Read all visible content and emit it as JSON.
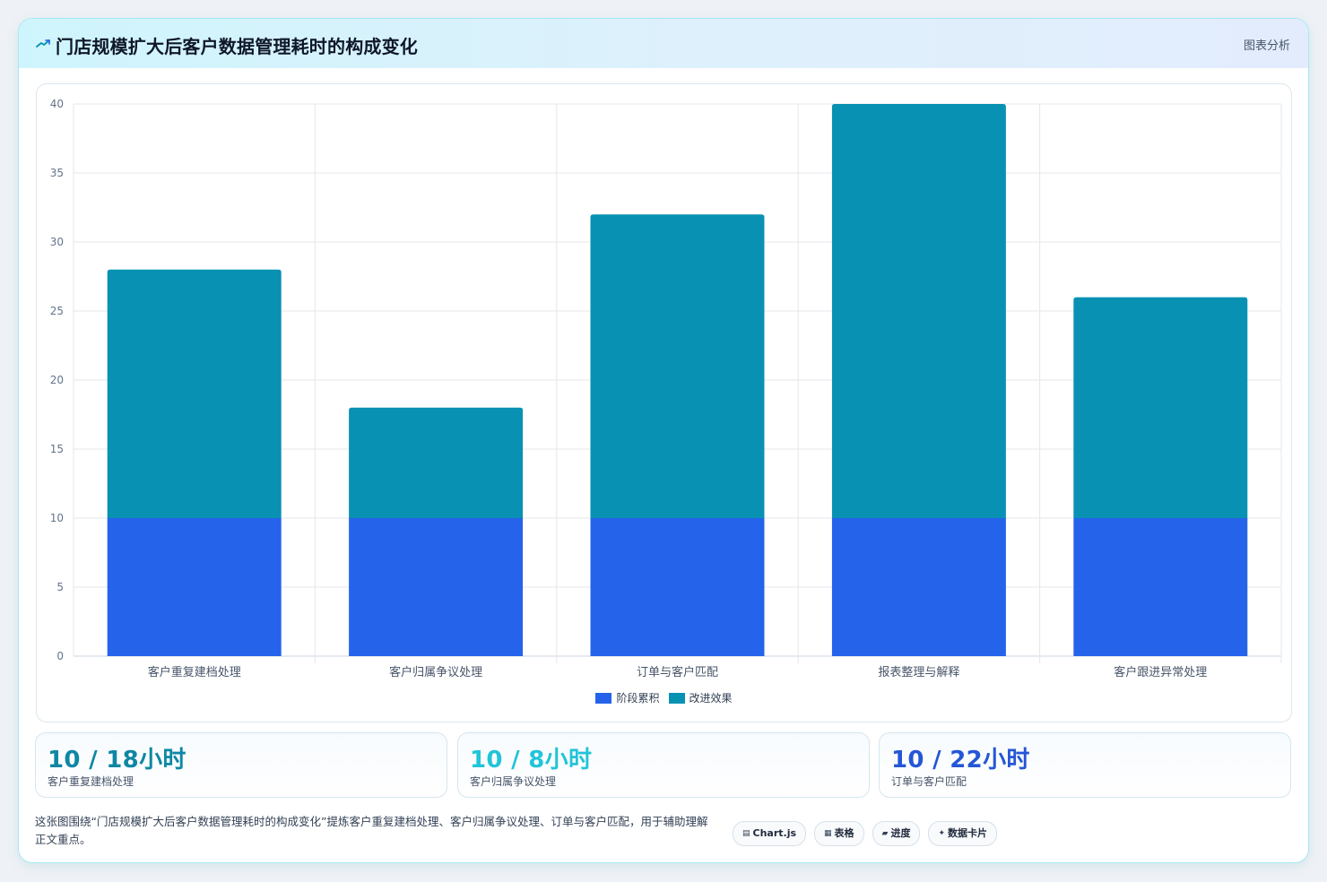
{
  "header": {
    "title": "门店规模扩大后客户数据管理耗时的构成变化",
    "tag": "图表分析"
  },
  "colors": {
    "series_a": "#2563eb",
    "series_b": "#0891b2",
    "stat_1": "#0e87a4",
    "stat_2": "#22c4d8",
    "stat_3": "#2556d6"
  },
  "chart_data": {
    "type": "bar",
    "stacked": true,
    "categories": [
      "客户重复建档处理",
      "客户归属争议处理",
      "订单与客户匹配",
      "报表整理与解释",
      "客户跟进异常处理"
    ],
    "series": [
      {
        "name": "阶段累积",
        "values": [
          10,
          10,
          10,
          10,
          10
        ],
        "color": "#2563eb"
      },
      {
        "name": "改进效果",
        "values": [
          18,
          8,
          22,
          30,
          16
        ],
        "color": "#0891b2"
      }
    ],
    "ylim": [
      0,
      40
    ],
    "yticks": [
      0,
      5,
      10,
      15,
      20,
      25,
      30,
      35,
      40
    ],
    "grid": true,
    "legend_position": "bottom-center"
  },
  "stats": [
    {
      "value": "10 / 18小时",
      "label": "客户重复建档处理"
    },
    {
      "value": "10 / 8小时",
      "label": "客户归属争议处理"
    },
    {
      "value": "10 / 22小时",
      "label": "订单与客户匹配"
    }
  ],
  "note": "这张图围绕“门店规模扩大后客户数据管理耗时的构成变化”提炼客户重复建档处理、客户归属争议处理、订单与客户匹配，用于辅助理解正文重点。",
  "chips": [
    {
      "icon": "▤",
      "label": "Chart.js",
      "icon_name": "chart-icon"
    },
    {
      "icon": "▦",
      "label": "表格",
      "icon_name": "table-icon"
    },
    {
      "icon": "▰",
      "label": "进度",
      "icon_name": "progress-icon"
    },
    {
      "icon": "✦",
      "label": "数据卡片",
      "icon_name": "spark-icon"
    }
  ]
}
